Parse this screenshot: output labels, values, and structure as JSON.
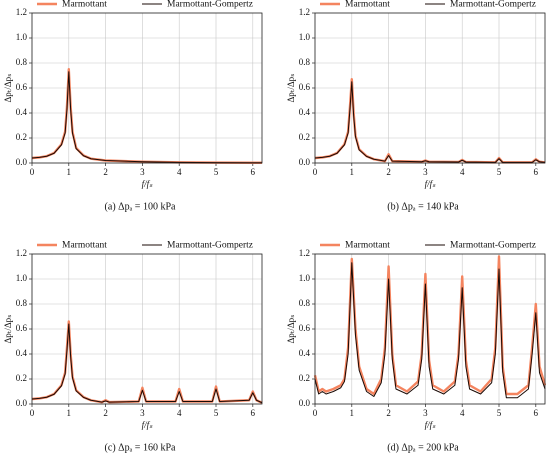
{
  "chart_data": [
    {
      "type": "line",
      "caption": "(a) Δpₐ = 100 kPa",
      "xlabel": "f/fₛ",
      "ylabel": "Δpₜ/Δpₛ",
      "grid": true,
      "legend": "top",
      "x": [
        0,
        0.2,
        0.4,
        0.6,
        0.8,
        0.9,
        0.95,
        1,
        1.05,
        1.1,
        1.2,
        1.4,
        1.6,
        2,
        3,
        4,
        5,
        6,
        6.25
      ],
      "series": [
        {
          "name": "Marmottant",
          "color": "#f4845f",
          "values": [
            0.04,
            0.045,
            0.055,
            0.08,
            0.15,
            0.25,
            0.45,
            0.75,
            0.45,
            0.25,
            0.12,
            0.06,
            0.035,
            0.02,
            0.01,
            0.005,
            0.003,
            0.002,
            0.002
          ]
        },
        {
          "name": "Marmottant-Gompertz",
          "color": "#1a0a05",
          "values": [
            0.04,
            0.045,
            0.054,
            0.078,
            0.145,
            0.24,
            0.43,
            0.73,
            0.43,
            0.24,
            0.115,
            0.058,
            0.034,
            0.02,
            0.01,
            0.005,
            0.003,
            0.002,
            0.002
          ]
        }
      ],
      "xlim": [
        0,
        6.25
      ],
      "xticks": [
        0,
        1,
        2,
        3,
        4,
        5,
        6
      ],
      "ylim": [
        0,
        1.2
      ],
      "yticks": [
        {
          "value": 0,
          "label": "0.0"
        },
        {
          "value": 0.2,
          "label": "0.2"
        },
        {
          "value": 0.4,
          "label": "0.4"
        },
        {
          "value": 0.6,
          "label": "0.6"
        },
        {
          "value": 0.8,
          "label": "0.8"
        },
        {
          "value": 1,
          "label": "1.0"
        },
        {
          "value": 1.2,
          "label": "1.2"
        }
      ]
    },
    {
      "type": "line",
      "caption": "(b) Δpₐ = 140 kPa",
      "xlabel": "f/fₛ",
      "ylabel": "Δpₜ/Δpₛ",
      "grid": true,
      "legend": "top",
      "x": [
        0,
        0.2,
        0.4,
        0.6,
        0.8,
        0.9,
        0.95,
        1,
        1.05,
        1.1,
        1.2,
        1.4,
        1.6,
        1.9,
        2,
        2.1,
        2.9,
        3,
        3.1,
        3.9,
        4,
        4.1,
        4.9,
        5,
        5.1,
        5.9,
        6,
        6.1,
        6.25
      ],
      "series": [
        {
          "name": "Marmottant",
          "color": "#f4845f",
          "values": [
            0.04,
            0.045,
            0.055,
            0.08,
            0.15,
            0.25,
            0.45,
            0.67,
            0.4,
            0.22,
            0.11,
            0.055,
            0.03,
            0.015,
            0.07,
            0.015,
            0.01,
            0.02,
            0.01,
            0.008,
            0.025,
            0.008,
            0.005,
            0.04,
            0.005,
            0.005,
            0.03,
            0.01,
            0.005
          ]
        },
        {
          "name": "Marmottant-Gompertz",
          "color": "#1a0a05",
          "values": [
            0.04,
            0.045,
            0.054,
            0.078,
            0.145,
            0.24,
            0.43,
            0.65,
            0.38,
            0.21,
            0.105,
            0.053,
            0.03,
            0.015,
            0.06,
            0.015,
            0.01,
            0.018,
            0.01,
            0.008,
            0.022,
            0.008,
            0.005,
            0.035,
            0.005,
            0.005,
            0.026,
            0.01,
            0.005
          ]
        }
      ],
      "xlim": [
        0,
        6.25
      ],
      "xticks": [
        0,
        1,
        2,
        3,
        4,
        5,
        6
      ],
      "ylim": [
        0,
        1.2
      ],
      "yticks": [
        {
          "value": 0,
          "label": "0.0"
        },
        {
          "value": 0.2,
          "label": "0.2"
        },
        {
          "value": 0.4,
          "label": "0.4"
        },
        {
          "value": 0.6,
          "label": "0.6"
        },
        {
          "value": 0.8,
          "label": "0.8"
        },
        {
          "value": 1,
          "label": "1.0"
        },
        {
          "value": 1.2,
          "label": "1.2"
        }
      ]
    },
    {
      "type": "line",
      "caption": "(c) Δpₐ = 160 kPa",
      "xlabel": "f/fₛ",
      "ylabel": "Δpₜ/Δpₛ",
      "grid": true,
      "legend": "top",
      "x": [
        0,
        0.2,
        0.4,
        0.6,
        0.8,
        0.9,
        0.95,
        1,
        1.05,
        1.1,
        1.2,
        1.4,
        1.6,
        1.9,
        2,
        2.1,
        2.9,
        3,
        3.1,
        3.9,
        4,
        4.1,
        4.9,
        5,
        5.1,
        5.9,
        6,
        6.1,
        6.25
      ],
      "series": [
        {
          "name": "Marmottant",
          "color": "#f4845f",
          "values": [
            0.04,
            0.045,
            0.055,
            0.08,
            0.15,
            0.25,
            0.45,
            0.66,
            0.4,
            0.22,
            0.11,
            0.055,
            0.03,
            0.015,
            0.03,
            0.015,
            0.02,
            0.13,
            0.02,
            0.02,
            0.12,
            0.02,
            0.02,
            0.14,
            0.02,
            0.03,
            0.1,
            0.03,
            0.01
          ]
        },
        {
          "name": "Marmottant-Gompertz",
          "color": "#1a0a05",
          "values": [
            0.04,
            0.045,
            0.054,
            0.078,
            0.145,
            0.24,
            0.43,
            0.64,
            0.38,
            0.21,
            0.105,
            0.053,
            0.03,
            0.015,
            0.025,
            0.015,
            0.02,
            0.11,
            0.02,
            0.02,
            0.1,
            0.02,
            0.02,
            0.12,
            0.02,
            0.03,
            0.09,
            0.03,
            0.01
          ]
        }
      ],
      "xlim": [
        0,
        6.25
      ],
      "xticks": [
        0,
        1,
        2,
        3,
        4,
        5,
        6
      ],
      "ylim": [
        0,
        1.2
      ],
      "yticks": [
        {
          "value": 0,
          "label": "0.0"
        },
        {
          "value": 0.2,
          "label": "0.2"
        },
        {
          "value": 0.4,
          "label": "0.4"
        },
        {
          "value": 0.6,
          "label": "0.6"
        },
        {
          "value": 0.8,
          "label": "0.8"
        },
        {
          "value": 1,
          "label": "1.0"
        },
        {
          "value": 1.2,
          "label": "1.2"
        }
      ]
    },
    {
      "type": "line",
      "caption": "(d) Δpₐ = 200 kPa",
      "xlabel": "f/fₛ",
      "ylabel": "Δpₜ/Δpₛ",
      "grid": true,
      "legend": "top",
      "x": [
        0,
        0.1,
        0.2,
        0.3,
        0.5,
        0.7,
        0.8,
        0.9,
        1,
        1.1,
        1.2,
        1.4,
        1.6,
        1.8,
        1.9,
        2,
        2.1,
        2.2,
        2.5,
        2.8,
        2.9,
        3,
        3.1,
        3.2,
        3.5,
        3.8,
        3.9,
        4,
        4.1,
        4.2,
        4.5,
        4.8,
        4.9,
        5,
        5.1,
        5.2,
        5.5,
        5.8,
        5.9,
        6,
        6.1,
        6.25
      ],
      "series": [
        {
          "name": "Marmottant",
          "color": "#f4845f",
          "values": [
            0.23,
            0.1,
            0.12,
            0.1,
            0.12,
            0.15,
            0.2,
            0.45,
            1.16,
            0.6,
            0.3,
            0.12,
            0.08,
            0.2,
            0.45,
            1.1,
            0.4,
            0.15,
            0.1,
            0.18,
            0.4,
            1.04,
            0.35,
            0.15,
            0.1,
            0.18,
            0.4,
            1.02,
            0.35,
            0.15,
            0.1,
            0.2,
            0.45,
            1.18,
            0.3,
            0.08,
            0.08,
            0.15,
            0.45,
            0.8,
            0.3,
            0.15
          ]
        },
        {
          "name": "Marmottant-Gompertz",
          "color": "#1a0a05",
          "values": [
            0.2,
            0.08,
            0.1,
            0.08,
            0.1,
            0.13,
            0.18,
            0.4,
            1.13,
            0.55,
            0.27,
            0.1,
            0.06,
            0.17,
            0.4,
            1.0,
            0.36,
            0.12,
            0.08,
            0.15,
            0.36,
            0.96,
            0.3,
            0.12,
            0.08,
            0.15,
            0.36,
            0.93,
            0.3,
            0.12,
            0.08,
            0.17,
            0.4,
            1.08,
            0.26,
            0.05,
            0.05,
            0.12,
            0.4,
            0.73,
            0.25,
            0.12
          ]
        }
      ],
      "xlim": [
        0,
        6.25
      ],
      "xticks": [
        0,
        1,
        2,
        3,
        4,
        5,
        6
      ],
      "ylim": [
        0,
        1.2
      ],
      "yticks": [
        {
          "value": 0,
          "label": "0.0"
        },
        {
          "value": 0.2,
          "label": "0.2"
        },
        {
          "value": 0.4,
          "label": "0.4"
        },
        {
          "value": 0.6,
          "label": "0.6"
        },
        {
          "value": 0.8,
          "label": "0.8"
        },
        {
          "value": 1,
          "label": "1.0"
        },
        {
          "value": 1.2,
          "label": "1.2"
        }
      ]
    }
  ]
}
